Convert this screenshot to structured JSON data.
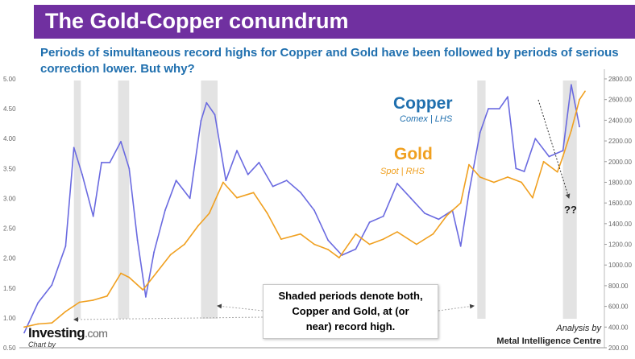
{
  "header": {
    "title": "The Gold-Copper conundrum"
  },
  "subtitle": "Periods of simultaneous record highs for Copper and Gold have been followed by periods of serious correction lower. But why?",
  "labels": {
    "copper_title": "Copper",
    "copper_sub": "Comex | LHS",
    "gold_title": "Gold",
    "gold_sub": "Spot | RHS",
    "question": "??"
  },
  "callout": {
    "lines": [
      "Shaded periods denote both,",
      "Copper and Gold, at (or",
      "near) record high."
    ]
  },
  "footer": {
    "analysis_by": "Analysis by",
    "analyst": "Metal Intelligence Centre",
    "logo_main": "Investing",
    "logo_suffix": ".com",
    "chart_by": "Chart by"
  },
  "colors": {
    "banner": "#7030a0",
    "subtitle": "#1f6fae",
    "copper": "#6a6ae0",
    "gold": "#f0a020",
    "shade": "#e3e3e3",
    "copper_label": "#1f6fae",
    "gold_label": "#f0a020"
  },
  "chart_data": {
    "type": "line",
    "title": "The Gold-Copper conundrum",
    "x_unit": "year",
    "xlim": [
      2004.5,
      2025.5
    ],
    "y_left": {
      "ticks": [
        "0.50",
        "1.00",
        "1.50",
        "2.00",
        "2.50",
        "3.00",
        "3.50",
        "4.00",
        "4.50",
        "5.00"
      ],
      "lim": [
        0.5,
        5.0
      ]
    },
    "y_right": {
      "ticks": [
        "200.00",
        "400.00",
        "600.00",
        "800.00",
        "1000.00",
        "1200.00",
        "1400.00",
        "1600.00",
        "1800.00",
        "2000.00",
        "2200.00",
        "2400.00",
        "2600.00",
        "2800.00"
      ],
      "lim": [
        200,
        2800
      ]
    },
    "shaded_periods": [
      [
        2006.3,
        2006.55
      ],
      [
        2007.9,
        2008.3
      ],
      [
        2010.9,
        2011.5
      ],
      [
        2020.9,
        2021.2
      ],
      [
        2024.0,
        2024.5
      ]
    ],
    "series": [
      {
        "name": "Copper",
        "axis": "left",
        "x": [
          2004.5,
          2005.0,
          2005.5,
          2006.0,
          2006.3,
          2006.6,
          2007.0,
          2007.3,
          2007.6,
          2008.0,
          2008.3,
          2008.6,
          2008.9,
          2009.2,
          2009.6,
          2010.0,
          2010.5,
          2010.9,
          2011.1,
          2011.4,
          2011.8,
          2012.2,
          2012.6,
          2013.0,
          2013.5,
          2014.0,
          2014.5,
          2015.0,
          2015.5,
          2016.0,
          2016.5,
          2017.0,
          2017.5,
          2018.0,
          2018.5,
          2019.0,
          2019.5,
          2020.0,
          2020.3,
          2020.6,
          2021.0,
          2021.3,
          2021.7,
          2022.0,
          2022.3,
          2022.6,
          2023.0,
          2023.5,
          2024.0,
          2024.3,
          2024.6
        ],
        "values": [
          0.75,
          1.25,
          1.55,
          2.2,
          3.85,
          3.4,
          2.7,
          3.6,
          3.6,
          3.95,
          3.5,
          2.3,
          1.35,
          2.1,
          2.8,
          3.3,
          3.0,
          4.3,
          4.6,
          4.4,
          3.3,
          3.8,
          3.4,
          3.6,
          3.2,
          3.3,
          3.1,
          2.8,
          2.3,
          2.05,
          2.15,
          2.6,
          2.7,
          3.25,
          3.0,
          2.75,
          2.65,
          2.8,
          2.2,
          3.1,
          4.1,
          4.5,
          4.5,
          4.7,
          3.5,
          3.45,
          4.0,
          3.7,
          3.8,
          4.9,
          4.2
        ]
      },
      {
        "name": "Gold",
        "axis": "right",
        "x": [
          2004.5,
          2005.0,
          2005.5,
          2006.0,
          2006.5,
          2007.0,
          2007.5,
          2008.0,
          2008.3,
          2008.8,
          2009.3,
          2009.8,
          2010.3,
          2010.8,
          2011.2,
          2011.7,
          2012.2,
          2012.8,
          2013.3,
          2013.8,
          2014.5,
          2015.0,
          2015.5,
          2015.9,
          2016.5,
          2017.0,
          2017.5,
          2018.0,
          2018.7,
          2019.3,
          2019.8,
          2020.3,
          2020.6,
          2021.0,
          2021.5,
          2022.0,
          2022.5,
          2022.9,
          2023.3,
          2023.8,
          2024.0,
          2024.3,
          2024.6,
          2024.8
        ],
        "values": [
          400,
          430,
          440,
          550,
          640,
          660,
          700,
          920,
          880,
          760,
          930,
          1100,
          1200,
          1380,
          1500,
          1800,
          1650,
          1700,
          1500,
          1250,
          1300,
          1200,
          1150,
          1070,
          1300,
          1200,
          1250,
          1320,
          1200,
          1300,
          1480,
          1600,
          1970,
          1850,
          1800,
          1850,
          1800,
          1650,
          2000,
          1900,
          2050,
          2300,
          2600,
          2680
        ]
      }
    ]
  }
}
